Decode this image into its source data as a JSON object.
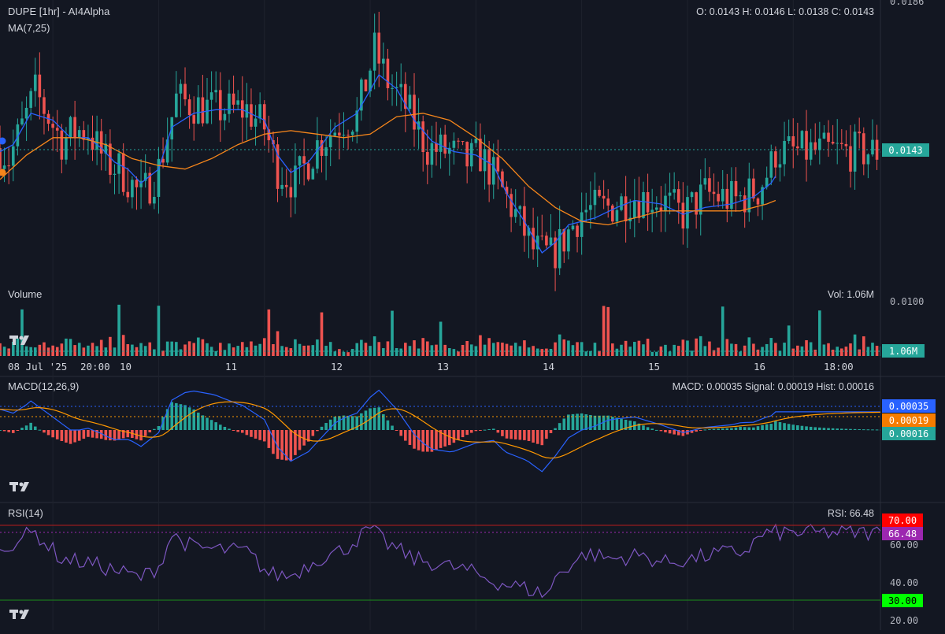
{
  "header": {
    "symbol_title": "DUPE [1hr] - AI4Alpha",
    "ohlc": "O: 0.0143 H: 0.0146 L: 0.0138 C: 0.0143",
    "ma_label": "MA(7,25)",
    "volume_label": "Volume",
    "volume_value": "Vol: 1.06M",
    "macd_label": "MACD(12,26,9)",
    "macd_value": "MACD: 0.00035 Signal: 0.00019 Hist: 0.00016",
    "rsi_label": "RSI(14)",
    "rsi_value": "RSI: 66.48"
  },
  "price_axis": {
    "top_tick": "0.0186",
    "bottom_tick": "0.0100",
    "last_price_tag": "0.0143"
  },
  "volume_axis": {
    "last_volume_tag": "1.06M"
  },
  "macd_axis": {
    "macd_tag": "0.00035",
    "signal_tag": "0.00019",
    "hist_tag": "0.00016"
  },
  "rsi_axis": {
    "ticks": [
      "60.00",
      "40.00",
      "20.00"
    ],
    "overbought_tag": "70.00",
    "oversold_tag": "30.00",
    "rsi_tag": "66.48"
  },
  "time_axis": {
    "labels": [
      "08 Jul '25",
      "20:00",
      "10",
      "11",
      "12",
      "13",
      "14",
      "15",
      "16",
      "18:00"
    ]
  },
  "colors": {
    "background": "#131722",
    "up": "#26a69a",
    "down": "#ef5350",
    "ma_fast": "#2962ff",
    "ma_slow": "#f7861b",
    "macd_line": "#2962ff",
    "signal_line": "#ff9800",
    "rsi_line": "#7e57c2",
    "overbought": "#ff0000",
    "oversold": "#00ff00",
    "rsi_tag": "#9c27b0"
  },
  "chart_data": [
    {
      "type": "candlestick",
      "title": "DUPE [1hr] - AI4Alpha",
      "x_range": [
        "2025-07-08T12:00",
        "2025-07-16T20:00"
      ],
      "ylim": [
        0.01,
        0.0186
      ],
      "last": {
        "open": 0.0143,
        "high": 0.0146,
        "low": 0.0138,
        "close": 0.0143
      },
      "close_path": [
        [
          "2025-07-08T12:00",
          0.0144
        ],
        [
          "2025-07-08T14:00",
          0.0141
        ],
        [
          "2025-07-08T17:00",
          0.015
        ],
        [
          "2025-07-08T20:00",
          0.016
        ],
        [
          "2025-07-09T02:00",
          0.0146
        ],
        [
          "2025-07-09T05:00",
          0.0149
        ],
        [
          "2025-07-09T08:00",
          0.0149
        ],
        [
          "2025-07-09T12:00",
          0.014
        ],
        [
          "2025-07-09T15:00",
          0.0138
        ],
        [
          "2025-07-09T17:00",
          0.0135
        ],
        [
          "2025-07-09T20:00",
          0.013
        ],
        [
          "2025-07-10T00:00",
          0.0138
        ],
        [
          "2025-07-10T04:00",
          0.0158
        ],
        [
          "2025-07-10T09:00",
          0.0156
        ],
        [
          "2025-07-10T14:00",
          0.0155
        ],
        [
          "2025-07-10T20:00",
          0.0155
        ],
        [
          "2025-07-11T00:00",
          0.015
        ],
        [
          "2025-07-11T03:00",
          0.0138
        ],
        [
          "2025-07-11T07:00",
          0.0134
        ],
        [
          "2025-07-11T12:00",
          0.0145
        ],
        [
          "2025-07-11T18:00",
          0.0152
        ],
        [
          "2025-07-11T21:00",
          0.0153
        ],
        [
          "2025-07-12T01:00",
          0.0172
        ],
        [
          "2025-07-12T04:00",
          0.0163
        ],
        [
          "2025-07-12T08:00",
          0.0156
        ],
        [
          "2025-07-12T13:00",
          0.0144
        ],
        [
          "2025-07-12T18:00",
          0.0143
        ],
        [
          "2025-07-12T22:00",
          0.014
        ],
        [
          "2025-07-13T01:00",
          0.0142
        ],
        [
          "2025-07-13T05:00",
          0.0134
        ],
        [
          "2025-07-13T09:00",
          0.0125
        ],
        [
          "2025-07-13T13:00",
          0.0115
        ],
        [
          "2025-07-13T17:00",
          0.0113
        ],
        [
          "2025-07-13T20:00",
          0.0118
        ],
        [
          "2025-07-14T00:00",
          0.0126
        ],
        [
          "2025-07-14T06:00",
          0.0127
        ],
        [
          "2025-07-14T12:00",
          0.013
        ],
        [
          "2025-07-14T18:00",
          0.0129
        ],
        [
          "2025-07-14T23:00",
          0.0125
        ],
        [
          "2025-07-15T04:00",
          0.0131
        ],
        [
          "2025-07-15T11:00",
          0.0129
        ],
        [
          "2025-07-15T16:00",
          0.0132
        ],
        [
          "2025-07-15T19:00",
          0.0139
        ],
        [
          "2025-07-15T20:00",
          0.0143
        ]
      ],
      "series": [
        {
          "name": "MA(7)",
          "points": [
            [
              "2025-07-08T12:00",
              0.0143
            ],
            [
              "2025-07-08T15:00",
              0.0145
            ],
            [
              "2025-07-08T19:00",
              0.0154
            ],
            [
              "2025-07-09T00:00",
              0.0152
            ],
            [
              "2025-07-09T04:00",
              0.0147
            ],
            [
              "2025-07-09T08:00",
              0.0147
            ],
            [
              "2025-07-09T11:00",
              0.0144
            ],
            [
              "2025-07-09T14:00",
              0.014
            ],
            [
              "2025-07-09T17:00",
              0.0138
            ],
            [
              "2025-07-09T20:00",
              0.0134
            ],
            [
              "2025-07-10T00:00",
              0.0138
            ],
            [
              "2025-07-10T03:00",
              0.015
            ],
            [
              "2025-07-10T08:00",
              0.0154
            ],
            [
              "2025-07-10T13:00",
              0.0155
            ],
            [
              "2025-07-10T19:00",
              0.0155
            ],
            [
              "2025-07-11T00:00",
              0.0152
            ],
            [
              "2025-07-11T03:00",
              0.0142
            ],
            [
              "2025-07-11T06:00",
              0.0137
            ],
            [
              "2025-07-11T10:00",
              0.014
            ],
            [
              "2025-07-11T16:00",
              0.015
            ],
            [
              "2025-07-11T21:00",
              0.0154
            ],
            [
              "2025-07-12T02:00",
              0.0165
            ],
            [
              "2025-07-12T06:00",
              0.0161
            ],
            [
              "2025-07-12T10:00",
              0.0152
            ],
            [
              "2025-07-12T14:00",
              0.0146
            ],
            [
              "2025-07-12T19:00",
              0.0143
            ],
            [
              "2025-07-13T00:00",
              0.0142
            ],
            [
              "2025-07-13T04:00",
              0.0139
            ],
            [
              "2025-07-13T07:00",
              0.0131
            ],
            [
              "2025-07-13T11:00",
              0.0123
            ],
            [
              "2025-07-13T15:00",
              0.0114
            ],
            [
              "2025-07-13T18:00",
              0.0117
            ],
            [
              "2025-07-13T21:00",
              0.0122
            ],
            [
              "2025-07-14T03:00",
              0.0124
            ],
            [
              "2025-07-14T08:00",
              0.0127
            ],
            [
              "2025-07-14T12:00",
              0.0129
            ],
            [
              "2025-07-14T18:00",
              0.0128
            ],
            [
              "2025-07-14T23:00",
              0.0125
            ],
            [
              "2025-07-15T04:00",
              0.0127
            ],
            [
              "2025-07-15T10:00",
              0.0128
            ],
            [
              "2025-07-15T15:00",
              0.013
            ],
            [
              "2025-07-15T19:00",
              0.0134
            ],
            [
              "2025-07-15T20:00",
              0.0136
            ]
          ]
        },
        {
          "name": "MA(25)",
          "points": [
            [
              "2025-07-08T12:00",
              0.0135
            ],
            [
              "2025-07-08T18:00",
              0.0142
            ],
            [
              "2025-07-09T00:00",
              0.0147
            ],
            [
              "2025-07-09T06:00",
              0.0147
            ],
            [
              "2025-07-09T12:00",
              0.0145
            ],
            [
              "2025-07-09T18:00",
              0.0141
            ],
            [
              "2025-07-10T00:00",
              0.0139
            ],
            [
              "2025-07-10T06:00",
              0.0138
            ],
            [
              "2025-07-10T12:00",
              0.0141
            ],
            [
              "2025-07-10T18:00",
              0.0145
            ],
            [
              "2025-07-11T00:00",
              0.0148
            ],
            [
              "2025-07-11T06:00",
              0.0149
            ],
            [
              "2025-07-11T12:00",
              0.0148
            ],
            [
              "2025-07-11T18:00",
              0.0147
            ],
            [
              "2025-07-12T00:00",
              0.0148
            ],
            [
              "2025-07-12T06:00",
              0.0153
            ],
            [
              "2025-07-12T12:00",
              0.0154
            ],
            [
              "2025-07-12T18:00",
              0.0152
            ],
            [
              "2025-07-13T00:00",
              0.0147
            ],
            [
              "2025-07-13T06:00",
              0.0141
            ],
            [
              "2025-07-13T12:00",
              0.0133
            ],
            [
              "2025-07-13T18:00",
              0.0127
            ],
            [
              "2025-07-14T00:00",
              0.0123
            ],
            [
              "2025-07-14T06:00",
              0.0122
            ],
            [
              "2025-07-14T12:00",
              0.0124
            ],
            [
              "2025-07-14T18:00",
              0.0126
            ],
            [
              "2025-07-15T00:00",
              0.0126
            ],
            [
              "2025-07-15T06:00",
              0.0126
            ],
            [
              "2025-07-15T12:00",
              0.0126
            ],
            [
              "2025-07-15T18:00",
              0.0128
            ],
            [
              "2025-07-15T20:00",
              0.0129
            ]
          ]
        }
      ]
    },
    {
      "type": "bar",
      "title": "Volume",
      "last_value": "1.06M"
    },
    {
      "type": "line",
      "title": "MACD(12,26,9)",
      "last": {
        "macd": 0.00035,
        "signal": 0.00019,
        "hist": 0.00016
      },
      "note": "histogram and lines oscillate around zero following price momentum"
    },
    {
      "type": "line",
      "title": "RSI(14)",
      "ylim": [
        15,
        80
      ],
      "bands": [
        30,
        70
      ],
      "last": 66.48,
      "points": [
        [
          "2025-07-08T12:00",
          55
        ],
        [
          "2025-07-08T16:00",
          63
        ],
        [
          "2025-07-08T20:00",
          66
        ],
        [
          "2025-07-09T02:00",
          52
        ],
        [
          "2025-07-09T08:00",
          50
        ],
        [
          "2025-07-09T14:00",
          46
        ],
        [
          "2025-07-09T20:00",
          42
        ],
        [
          "2025-07-10T00:00",
          48
        ],
        [
          "2025-07-10T03:00",
          65
        ],
        [
          "2025-07-10T08:00",
          58
        ],
        [
          "2025-07-10T14:00",
          57
        ],
        [
          "2025-07-10T20:00",
          56
        ],
        [
          "2025-07-11T01:00",
          44
        ],
        [
          "2025-07-11T06:00",
          43
        ],
        [
          "2025-07-11T12:00",
          52
        ],
        [
          "2025-07-11T18:00",
          57
        ],
        [
          "2025-07-12T00:00",
          68
        ],
        [
          "2025-07-12T04:00",
          60
        ],
        [
          "2025-07-12T10:00",
          52
        ],
        [
          "2025-07-12T16:00",
          49
        ],
        [
          "2025-07-12T22:00",
          46
        ],
        [
          "2025-07-13T04:00",
          40
        ],
        [
          "2025-07-13T10:00",
          37
        ],
        [
          "2025-07-13T16:00",
          33
        ],
        [
          "2025-07-13T19:00",
          45
        ],
        [
          "2025-07-14T01:00",
          55
        ],
        [
          "2025-07-14T07:00",
          52
        ],
        [
          "2025-07-14T13:00",
          54
        ],
        [
          "2025-07-14T19:00",
          50
        ],
        [
          "2025-07-15T01:00",
          52
        ],
        [
          "2025-07-15T07:00",
          55
        ],
        [
          "2025-07-15T13:00",
          56
        ],
        [
          "2025-07-15T17:00",
          65
        ],
        [
          "2025-07-15T20:00",
          66
        ]
      ]
    }
  ]
}
